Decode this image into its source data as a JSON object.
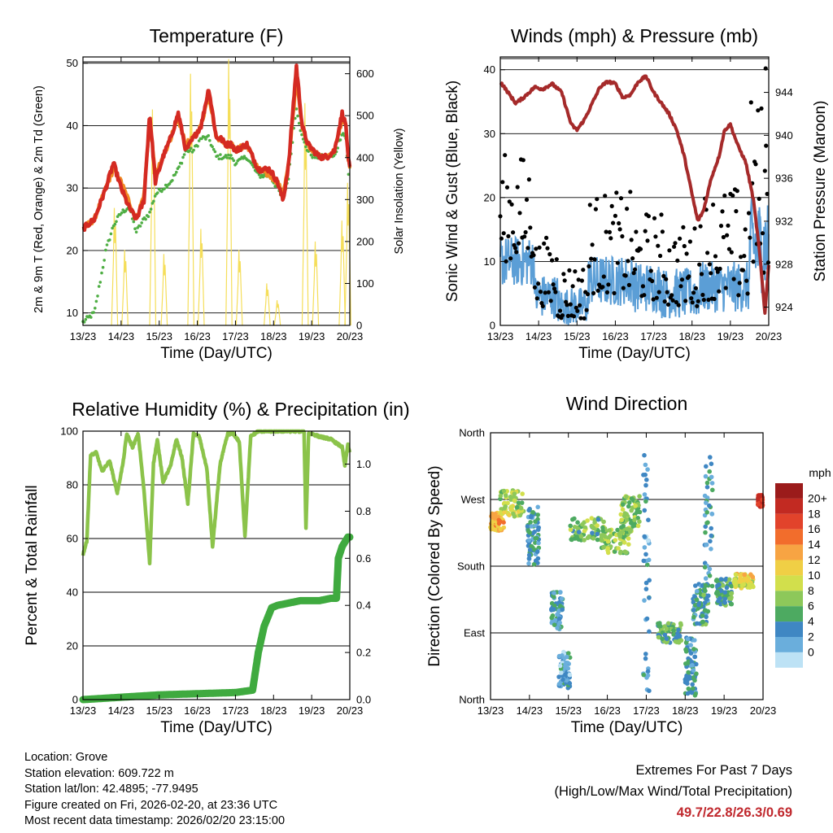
{
  "x_ticks": [
    "13/23",
    "14/23",
    "15/23",
    "16/23",
    "17/23",
    "18/23",
    "19/23",
    "20/23"
  ],
  "x_label": "Time (Day/UTC)",
  "chart_data": [
    {
      "type": "line",
      "title": "Temperature (F)",
      "xlabel": "Time (Day/UTC)",
      "ylabel": "2m & 9m T (Red, Orange) & 2m Td (Green)",
      "y2label": "Solar Insolation (Yellow)",
      "ylim": [
        8,
        51
      ],
      "y2lim": [
        0,
        640
      ],
      "yticks": [
        "10",
        "20",
        "30",
        "40",
        "50"
      ],
      "y2ticks": [
        "0",
        "100",
        "200",
        "300",
        "400",
        "500",
        "600"
      ],
      "x_day": [
        0,
        0.3,
        0.6,
        0.8,
        1.0,
        1.2,
        1.4,
        1.6,
        1.75,
        1.9,
        2.1,
        2.3,
        2.5,
        2.7,
        2.9,
        3.1,
        3.3,
        3.5,
        3.6,
        3.75,
        3.9,
        4.0,
        4.3,
        4.6,
        4.9,
        5.1,
        5.25,
        5.4,
        5.5,
        5.6,
        5.75,
        5.9,
        6.05,
        6.2,
        6.4,
        6.6,
        6.8,
        6.9,
        6.95,
        7.0
      ],
      "series": [
        {
          "name": "2m T",
          "color": "#d42a22",
          "values": [
            23.5,
            25,
            30,
            34,
            30,
            27,
            25,
            28,
            42,
            31,
            35,
            38,
            42,
            36,
            38,
            40,
            46,
            38,
            38,
            37,
            37,
            36,
            37,
            33,
            33,
            31,
            28,
            34,
            42,
            49.5,
            40,
            37,
            36,
            35,
            35,
            36,
            42,
            40,
            35,
            33
          ]
        },
        {
          "name": "9m T",
          "color": "#f08a24",
          "values": [
            23.5,
            25,
            30,
            33,
            31,
            28,
            25,
            29,
            41,
            32,
            35,
            38,
            41,
            37,
            38,
            40,
            45,
            38,
            38,
            37,
            37,
            36,
            37,
            33,
            32,
            31,
            29,
            34,
            41,
            47,
            40,
            37,
            36,
            35,
            35,
            36,
            41,
            40,
            35,
            33
          ]
        },
        {
          "name": "2m Td",
          "color": "#4fae44",
          "values": [
            8.5,
            10,
            20,
            24,
            26,
            27,
            23,
            25,
            26,
            29,
            30,
            31,
            33,
            36,
            36,
            38,
            38,
            35,
            35,
            35,
            35,
            34,
            35,
            32,
            32,
            30,
            28,
            32,
            38,
            43,
            38,
            36,
            35,
            35,
            35,
            35,
            39,
            38,
            33,
            30
          ]
        }
      ],
      "solar_peaks": [
        {
          "day": 0.83,
          "value": 280
        },
        {
          "day": 1.1,
          "value": 180
        },
        {
          "day": 1.83,
          "value": 515
        },
        {
          "day": 2.13,
          "value": 170
        },
        {
          "day": 2.83,
          "value": 600
        },
        {
          "day": 3.1,
          "value": 230
        },
        {
          "day": 3.83,
          "value": 635
        },
        {
          "day": 4.1,
          "value": 180
        },
        {
          "day": 4.83,
          "value": 100
        },
        {
          "day": 5.1,
          "value": 60
        },
        {
          "day": 5.83,
          "value": 530
        },
        {
          "day": 6.1,
          "value": 200
        },
        {
          "day": 6.8,
          "value": 250
        },
        {
          "day": 6.95,
          "value": 340
        }
      ],
      "solar_color": "#f5de5a"
    },
    {
      "type": "scatter",
      "title": "Winds (mph) & Pressure (mb)",
      "xlabel": "Time (Day/UTC)",
      "ylabel": "Sonic Wind & Gust (Blue, Black)",
      "y2label": "Station Pressure (Maroon)",
      "ylim": [
        0,
        42
      ],
      "y2lim": [
        922.3,
        947.3
      ],
      "yticks": [
        "0",
        "10",
        "20",
        "30",
        "40"
      ],
      "y2ticks": [
        "924",
        "928",
        "932",
        "936",
        "940",
        "944"
      ],
      "pressure": {
        "name": "Station Pressure",
        "color": "#a52a2a",
        "x_day": [
          0,
          0.2,
          0.4,
          0.6,
          0.9,
          1.1,
          1.35,
          1.6,
          1.85,
          2.0,
          2.2,
          2.4,
          2.6,
          2.8,
          3.0,
          3.2,
          3.4,
          3.6,
          3.8,
          4.0,
          4.2,
          4.4,
          4.6,
          4.8,
          5.0,
          5.15,
          5.3,
          5.5,
          5.7,
          5.85,
          6.0,
          6.2,
          6.4,
          6.6,
          6.75,
          6.9,
          7.0
        ],
        "values": [
          945,
          944,
          943,
          943.5,
          944.5,
          944.3,
          944.8,
          944,
          941,
          940.5,
          941.5,
          943,
          944.5,
          945,
          944.8,
          943.5,
          943.8,
          945,
          945.5,
          944,
          943,
          942,
          940.5,
          938,
          934.5,
          932,
          933,
          936,
          938,
          940.5,
          941,
          939,
          937.5,
          934,
          929.5,
          923.5,
          928
        ]
      },
      "wind_mean_ranges": [
        {
          "from": 0,
          "to": 0.9,
          "low": 6,
          "high": 14
        },
        {
          "from": 0.9,
          "to": 1.5,
          "low": 1,
          "high": 8
        },
        {
          "from": 1.5,
          "to": 2.3,
          "low": 0,
          "high": 6
        },
        {
          "from": 2.3,
          "to": 3.5,
          "low": 3,
          "high": 11
        },
        {
          "from": 3.5,
          "to": 4.2,
          "low": 2,
          "high": 10
        },
        {
          "from": 4.2,
          "to": 5.2,
          "low": 1,
          "high": 9
        },
        {
          "from": 5.2,
          "to": 6.5,
          "low": 2,
          "high": 10
        },
        {
          "from": 6.5,
          "to": 7.0,
          "low": 5,
          "high": 20
        }
      ],
      "wind_gust_ranges": [
        {
          "from": 0,
          "to": 0.9,
          "low": 10,
          "high": 27
        },
        {
          "from": 0.9,
          "to": 1.5,
          "low": 3,
          "high": 14
        },
        {
          "from": 1.5,
          "to": 2.3,
          "low": 1,
          "high": 10
        },
        {
          "from": 2.3,
          "to": 3.5,
          "low": 5,
          "high": 21
        },
        {
          "from": 3.5,
          "to": 4.2,
          "low": 4,
          "high": 18
        },
        {
          "from": 4.2,
          "to": 5.2,
          "low": 3,
          "high": 16
        },
        {
          "from": 5.2,
          "to": 6.5,
          "low": 4,
          "high": 22
        },
        {
          "from": 6.5,
          "to": 7.0,
          "low": 8,
          "high": 36
        }
      ],
      "max_gust_point": {
        "day": 6.92,
        "value": 40.2
      },
      "wind_color": "#5b9ed6",
      "gust_color": "#000000"
    },
    {
      "type": "line",
      "title": "Relative Humidity (%) & Precipitation (in)",
      "xlabel": "Time (Day/UTC)",
      "ylabel": "Percent & Total Rainfall",
      "ylim": [
        0,
        100
      ],
      "y2lim": [
        0,
        1.14
      ],
      "yticks": [
        "0",
        "20",
        "40",
        "60",
        "80",
        "100"
      ],
      "y2ticks": [
        "0.0",
        "0.2",
        "0.4",
        "0.6",
        "0.8",
        "1.0"
      ],
      "rh": {
        "name": "Relative Humidity",
        "color": "#8bc34a",
        "x_day": [
          0,
          0.1,
          0.2,
          0.35,
          0.5,
          0.7,
          0.9,
          1.05,
          1.15,
          1.3,
          1.45,
          1.6,
          1.75,
          1.85,
          1.95,
          2.1,
          2.3,
          2.45,
          2.6,
          2.75,
          2.9,
          3.05,
          3.25,
          3.4,
          3.6,
          3.8,
          3.95,
          4.1,
          4.25,
          4.4,
          4.6,
          4.8,
          5.0,
          5.3,
          5.6,
          5.8,
          5.85,
          5.92,
          6.0,
          6.2,
          6.5,
          6.8,
          6.87,
          6.95,
          7.0
        ],
        "values": [
          54,
          59,
          91,
          92,
          85,
          89,
          77,
          88,
          99,
          94,
          99,
          78,
          51,
          88,
          97,
          81,
          87,
          97,
          90,
          73,
          99,
          98,
          86,
          57,
          88,
          99,
          99,
          96,
          61,
          98,
          100,
          100,
          100,
          100,
          100,
          100,
          64,
          99,
          99,
          98,
          97,
          94,
          87,
          95,
          92
        ]
      },
      "precip": {
        "name": "Total Precipitation",
        "color": "#3faa3f",
        "x_day": [
          0,
          1.0,
          2.0,
          3.0,
          4.0,
          4.45,
          4.6,
          4.75,
          4.95,
          5.1,
          5.4,
          5.7,
          5.95,
          6.2,
          6.5,
          6.65,
          6.7,
          6.8,
          6.95,
          7.0
        ],
        "values": [
          0,
          0.01,
          0.02,
          0.025,
          0.03,
          0.04,
          0.2,
          0.31,
          0.39,
          0.4,
          0.41,
          0.42,
          0.42,
          0.42,
          0.43,
          0.43,
          0.6,
          0.65,
          0.69,
          0.69
        ]
      }
    },
    {
      "type": "scatter",
      "title": "Wind Direction",
      "xlabel": "Time (Day/UTC)",
      "ylabel": "Direction (Colored By Speed)",
      "yticks": [
        "North",
        "East",
        "South",
        "West",
        "North"
      ],
      "legend_title": "mph",
      "legend_labels": [
        "20+",
        "18",
        "16",
        "14",
        "12",
        "10",
        "8",
        "6",
        "4",
        "2",
        "0"
      ],
      "legend_colors": [
        "#9b1b1b",
        "#c22a22",
        "#e2432b",
        "#f26d2c",
        "#f7a443",
        "#f0cf45",
        "#d2df4c",
        "#8dc85a",
        "#4daa61",
        "#3f87c3",
        "#6aaedc",
        "#bde2f5"
      ],
      "clusters": [
        {
          "day": 0.1,
          "dir": 240,
          "speed": 13,
          "spread_d": 0.25,
          "spread_dir": 12
        },
        {
          "day": 0.55,
          "dir": 265,
          "speed": 9,
          "spread_d": 0.3,
          "spread_dir": 18
        },
        {
          "day": 1.1,
          "dir": 220,
          "speed": 4,
          "spread_d": 0.15,
          "spread_dir": 40
        },
        {
          "day": 1.7,
          "dir": 120,
          "speed": 4,
          "spread_d": 0.15,
          "spread_dir": 25
        },
        {
          "day": 1.9,
          "dir": 40,
          "speed": 3,
          "spread_d": 0.15,
          "spread_dir": 25
        },
        {
          "day": 2.5,
          "dir": 230,
          "speed": 7,
          "spread_d": 0.45,
          "spread_dir": 15
        },
        {
          "day": 3.2,
          "dir": 215,
          "speed": 8,
          "spread_d": 0.35,
          "spread_dir": 18
        },
        {
          "day": 3.6,
          "dir": 250,
          "speed": 8,
          "spread_d": 0.25,
          "spread_dir": 25
        },
        {
          "day": 4.0,
          "dir": 180,
          "speed": 3,
          "spread_d": 0.08,
          "spread_dir": 170
        },
        {
          "day": 4.6,
          "dir": 90,
          "speed": 6,
          "spread_d": 0.3,
          "spread_dir": 14
        },
        {
          "day": 5.15,
          "dir": 45,
          "speed": 4,
          "spread_d": 0.15,
          "spread_dir": 40
        },
        {
          "day": 5.4,
          "dir": 130,
          "speed": 5,
          "spread_d": 0.2,
          "spread_dir": 30
        },
        {
          "day": 5.6,
          "dir": 230,
          "speed": 4,
          "spread_d": 0.1,
          "spread_dir": 100
        },
        {
          "day": 6.0,
          "dir": 145,
          "speed": 6,
          "spread_d": 0.2,
          "spread_dir": 18
        },
        {
          "day": 6.5,
          "dir": 160,
          "speed": 11,
          "spread_d": 0.25,
          "spread_dir": 10
        },
        {
          "day": 6.93,
          "dir": 268,
          "speed": 20,
          "spread_d": 0.06,
          "spread_dir": 8
        }
      ]
    }
  ],
  "info": {
    "location": "Location: Grove",
    "elevation": "Station elevation: 609.722 m",
    "latlon": "Station lat/lon: 42.4895; -77.9495",
    "created": "Figure created on Fri, 2026-02-20, at 23:36 UTC",
    "recent": "Most recent data timestamp: 2026/02/20 23:15:00"
  },
  "extremes": {
    "title": "Extremes For Past 7 Days",
    "subtitle": "(High/Low/Max Wind/Total Precipitation)",
    "values": "49.7/22.8/26.3/0.69"
  }
}
